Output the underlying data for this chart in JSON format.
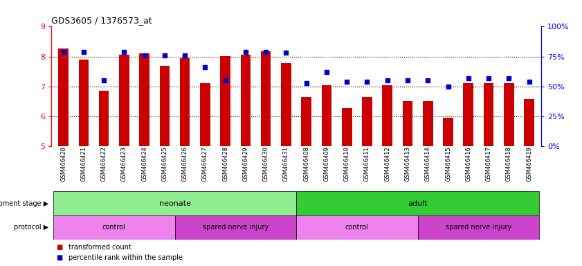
{
  "title": "GDS3605 / 1376573_at",
  "samples": [
    "GSM466420",
    "GSM466421",
    "GSM466422",
    "GSM466423",
    "GSM466424",
    "GSM466425",
    "GSM466426",
    "GSM466427",
    "GSM466428",
    "GSM466429",
    "GSM466430",
    "GSM466431",
    "GSM466408",
    "GSM466409",
    "GSM466410",
    "GSM466411",
    "GSM466412",
    "GSM466413",
    "GSM466414",
    "GSM466415",
    "GSM466416",
    "GSM466417",
    "GSM466418",
    "GSM466419"
  ],
  "bar_values": [
    8.28,
    7.9,
    6.85,
    8.05,
    8.1,
    7.7,
    7.95,
    7.12,
    8.02,
    8.05,
    8.18,
    7.78,
    6.65,
    7.05,
    6.27,
    6.65,
    7.05,
    6.52,
    6.52,
    5.95,
    7.12,
    7.1,
    7.1,
    6.58
  ],
  "percentile_values": [
    79,
    79,
    55,
    79,
    76,
    76,
    76,
    66,
    55,
    79,
    79,
    78,
    53,
    62,
    54,
    54,
    55,
    55,
    55,
    50,
    57,
    57,
    57,
    54
  ],
  "bar_bottom": 5.0,
  "ylim": [
    5.0,
    9.0
  ],
  "y_left_ticks": [
    5,
    6,
    7,
    8,
    9
  ],
  "y_right_ticks": [
    0,
    25,
    50,
    75,
    100
  ],
  "bar_color": "#cc0000",
  "dot_color": "#0000cc",
  "development_stage_groups": [
    {
      "label": "neonate",
      "start": 0,
      "end": 11,
      "color": "#90ee90"
    },
    {
      "label": "adult",
      "start": 12,
      "end": 23,
      "color": "#33cc33"
    }
  ],
  "protocol_groups": [
    {
      "label": "control",
      "start": 0,
      "end": 5,
      "color": "#ee82ee"
    },
    {
      "label": "spared nerve injury",
      "start": 6,
      "end": 11,
      "color": "#cc44cc"
    },
    {
      "label": "control",
      "start": 12,
      "end": 17,
      "color": "#ee82ee"
    },
    {
      "label": "spared nerve injury",
      "start": 18,
      "end": 23,
      "color": "#cc44cc"
    }
  ],
  "legend_bar_color": "#cc0000",
  "legend_dot_color": "#0000cc",
  "legend_bar_label": "transformed count",
  "legend_dot_label": "percentile rank within the sample",
  "dev_stage_label": "development stage",
  "protocol_label": "protocol",
  "grid_color": "black",
  "grid_linestyle": ":",
  "grid_linewidth": 0.8,
  "left_axis_color": "red",
  "right_axis_color": "blue",
  "bar_width": 0.5,
  "dot_size": 18
}
